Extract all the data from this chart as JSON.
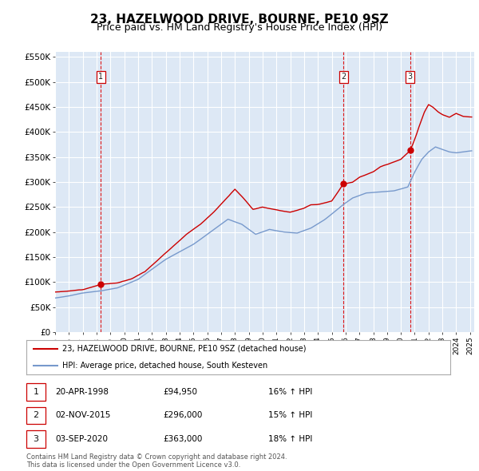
{
  "title": "23, HAZELWOOD DRIVE, BOURNE, PE10 9SZ",
  "subtitle": "Price paid vs. HM Land Registry's House Price Index (HPI)",
  "title_fontsize": 11,
  "subtitle_fontsize": 9,
  "xlim_start": 1995.0,
  "xlim_end": 2025.3,
  "ylim_min": 0,
  "ylim_max": 560000,
  "yticks": [
    0,
    50000,
    100000,
    150000,
    200000,
    250000,
    300000,
    350000,
    400000,
    450000,
    500000,
    550000
  ],
  "ytick_labels": [
    "£0",
    "£50K",
    "£100K",
    "£150K",
    "£200K",
    "£250K",
    "£300K",
    "£350K",
    "£400K",
    "£450K",
    "£500K",
    "£550K"
  ],
  "red_line_color": "#cc0000",
  "blue_line_color": "#7799cc",
  "chart_bg_color": "#dde8f5",
  "outer_bg_color": "#ffffff",
  "grid_color": "#ffffff",
  "vline_color": "#dd0000",
  "sale_points": [
    {
      "year": 1998.3,
      "price": 94950,
      "label": "1"
    },
    {
      "year": 2015.84,
      "price": 296000,
      "label": "2"
    },
    {
      "year": 2020.67,
      "price": 363000,
      "label": "3"
    }
  ],
  "legend_entries": [
    "23, HAZELWOOD DRIVE, BOURNE, PE10 9SZ (detached house)",
    "HPI: Average price, detached house, South Kesteven"
  ],
  "table_rows": [
    [
      "1",
      "20-APR-1998",
      "£94,950",
      "16% ↑ HPI"
    ],
    [
      "2",
      "02-NOV-2015",
      "£296,000",
      "15% ↑ HPI"
    ],
    [
      "3",
      "03-SEP-2020",
      "£363,000",
      "18% ↑ HPI"
    ]
  ],
  "footnote": "Contains HM Land Registry data © Crown copyright and database right 2024.\nThis data is licensed under the Open Government Licence v3.0.",
  "xtick_years": [
    1995,
    1996,
    1997,
    1998,
    1999,
    2000,
    2001,
    2002,
    2003,
    2004,
    2005,
    2006,
    2007,
    2008,
    2009,
    2010,
    2011,
    2012,
    2013,
    2014,
    2015,
    2016,
    2017,
    2018,
    2019,
    2020,
    2021,
    2022,
    2023,
    2024,
    2025
  ]
}
